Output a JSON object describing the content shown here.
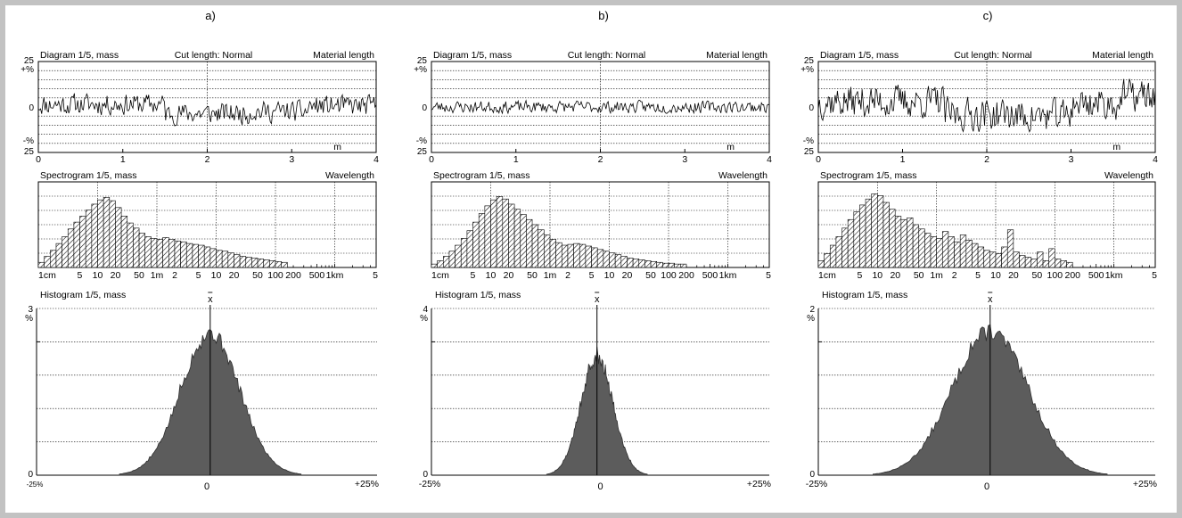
{
  "chart_data": [
    {
      "panel": "a)",
      "diagram": {
        "type": "line",
        "title": "Diagram 1/5, mass",
        "cut_label": "Cut length: Normal",
        "right_label": "Material length",
        "y_top_label": "25",
        "y_top_unit": "+%",
        "y_zero_label": "0",
        "y_bottom_unit": "-%",
        "y_bottom_label": "25",
        "x_ticks": [
          "0",
          "1",
          "2",
          "3",
          "4"
        ],
        "x_unit": "m",
        "xlim": [
          0,
          4
        ],
        "ylim": [
          -25,
          25
        ],
        "cut_at": 2,
        "noise_amplitude": 7,
        "baseline_segments": [
          [
            0,
            1.5,
            1.5
          ],
          [
            1.5,
            2.5,
            -3.5
          ],
          [
            2.5,
            3.2,
            -2.5
          ],
          [
            3.2,
            4,
            0.5
          ]
        ],
        "seed": 11
      },
      "spectrogram": {
        "type": "bar",
        "title": "Spectrogram 1/5, mass",
        "right_label": "Wavelength",
        "x_ticks": [
          "1cm",
          "5",
          "10",
          "20",
          "50",
          "1m",
          "2",
          "5",
          "10",
          "20",
          "50",
          "100",
          "200",
          "500",
          "1km",
          "5"
        ],
        "bins_per_decade": 10,
        "values": [
          0.06,
          0.13,
          0.2,
          0.28,
          0.36,
          0.45,
          0.53,
          0.6,
          0.67,
          0.74,
          0.79,
          0.82,
          0.78,
          0.7,
          0.6,
          0.52,
          0.46,
          0.4,
          0.36,
          0.34,
          0.33,
          0.35,
          0.33,
          0.31,
          0.3,
          0.28,
          0.27,
          0.26,
          0.24,
          0.22,
          0.2,
          0.19,
          0.17,
          0.15,
          0.13,
          0.12,
          0.11,
          0.1,
          0.09,
          0.08,
          0.07,
          0.06
        ]
      },
      "histogram": {
        "type": "area",
        "title": "Histogram 1/5, mass",
        "mean_label": "x",
        "y_top_label": "3",
        "y_unit": "%",
        "y_zero_label": "0",
        "ylim": [
          0,
          3
        ],
        "x_left_label": "-25%",
        "x_center_label": "0",
        "x_right_label": "+25%",
        "xlim": [
          -25,
          25
        ],
        "mean": 0.5,
        "std": 4.3,
        "peak": 2.55,
        "seed": 5
      }
    },
    {
      "panel": "b)",
      "diagram": {
        "type": "line",
        "title": "Diagram 1/5, mass",
        "cut_label": "Cut length: Normal",
        "right_label": "Material length",
        "y_top_label": "25",
        "y_top_unit": "+%",
        "y_zero_label": "0",
        "y_bottom_unit": "-%",
        "y_bottom_label": "25",
        "x_ticks": [
          "0",
          "1",
          "2",
          "3",
          "4"
        ],
        "x_unit": "m",
        "xlim": [
          0,
          4
        ],
        "ylim": [
          -25,
          25
        ],
        "cut_at": 2,
        "noise_amplitude": 4,
        "baseline_segments": [
          [
            0,
            4,
            0
          ]
        ],
        "seed": 23
      },
      "spectrogram": {
        "type": "bar",
        "title": "Spectrogram 1/5, mass",
        "right_label": "Wavelength",
        "x_ticks": [
          "1cm",
          "5",
          "10",
          "20",
          "50",
          "1m",
          "2",
          "5",
          "10",
          "20",
          "50",
          "100",
          "200",
          "500",
          "1km",
          "5"
        ],
        "bins_per_decade": 10,
        "values": [
          0.04,
          0.08,
          0.13,
          0.19,
          0.26,
          0.34,
          0.43,
          0.53,
          0.63,
          0.72,
          0.79,
          0.83,
          0.8,
          0.74,
          0.68,
          0.62,
          0.56,
          0.5,
          0.44,
          0.38,
          0.33,
          0.29,
          0.26,
          0.27,
          0.28,
          0.27,
          0.25,
          0.23,
          0.21,
          0.19,
          0.17,
          0.15,
          0.13,
          0.11,
          0.1,
          0.09,
          0.08,
          0.07,
          0.06,
          0.05,
          0.05,
          0.04,
          0.04
        ]
      },
      "histogram": {
        "type": "area",
        "title": "Histogram 1/5, mass",
        "mean_label": "x",
        "y_top_label": "4",
        "y_unit": "%",
        "y_zero_label": "0",
        "ylim": [
          0,
          4
        ],
        "x_left_label": "-25%",
        "x_center_label": "0",
        "x_right_label": "+25%",
        "xlim": [
          -25,
          25
        ],
        "mean": -0.5,
        "std": 2.4,
        "peak": 2.8,
        "seed": 9
      }
    },
    {
      "panel": "c)",
      "diagram": {
        "type": "line",
        "title": "Diagram 1/5, mass",
        "cut_label": "Cut length: Normal",
        "right_label": "Material length",
        "y_top_label": "25",
        "y_top_unit": "+%",
        "y_zero_label": "0",
        "y_bottom_unit": "-%",
        "y_bottom_label": "25",
        "x_ticks": [
          "0",
          "1",
          "2",
          "3",
          "4"
        ],
        "x_unit": "m",
        "xlim": [
          0,
          4
        ],
        "ylim": [
          -25,
          25
        ],
        "cut_at": 2,
        "noise_amplitude": 11,
        "baseline_segments": [
          [
            0,
            1.5,
            3
          ],
          [
            1.5,
            2.3,
            -4
          ],
          [
            2.3,
            3.0,
            -5
          ],
          [
            3.0,
            3.6,
            2
          ],
          [
            3.6,
            4,
            6
          ]
        ],
        "seed": 37
      },
      "spectrogram": {
        "type": "bar",
        "title": "Spectrogram 1/5, mass",
        "right_label": "Wavelength",
        "x_ticks": [
          "1cm",
          "5",
          "10",
          "20",
          "50",
          "1m",
          "2",
          "5",
          "10",
          "20",
          "50",
          "100",
          "200",
          "500",
          "1km",
          "5"
        ],
        "bins_per_decade": 10,
        "values": [
          0.08,
          0.16,
          0.26,
          0.36,
          0.46,
          0.56,
          0.65,
          0.73,
          0.8,
          0.86,
          0.84,
          0.76,
          0.68,
          0.6,
          0.56,
          0.58,
          0.5,
          0.45,
          0.4,
          0.36,
          0.34,
          0.42,
          0.36,
          0.3,
          0.38,
          0.32,
          0.28,
          0.24,
          0.2,
          0.18,
          0.16,
          0.24,
          0.44,
          0.18,
          0.14,
          0.12,
          0.1,
          0.18,
          0.08,
          0.22,
          0.1,
          0.08,
          0.06
        ]
      },
      "histogram": {
        "type": "area",
        "title": "Histogram 1/5, mass",
        "mean_label": "x",
        "y_top_label": "2",
        "y_unit": "%",
        "y_zero_label": "0",
        "ylim": [
          0,
          2
        ],
        "x_left_label": "-25%",
        "x_center_label": "0",
        "x_right_label": "+25%",
        "xlim": [
          -25,
          25
        ],
        "mean": 0.5,
        "std": 5.6,
        "peak": 1.72,
        "seed": 13
      }
    }
  ]
}
